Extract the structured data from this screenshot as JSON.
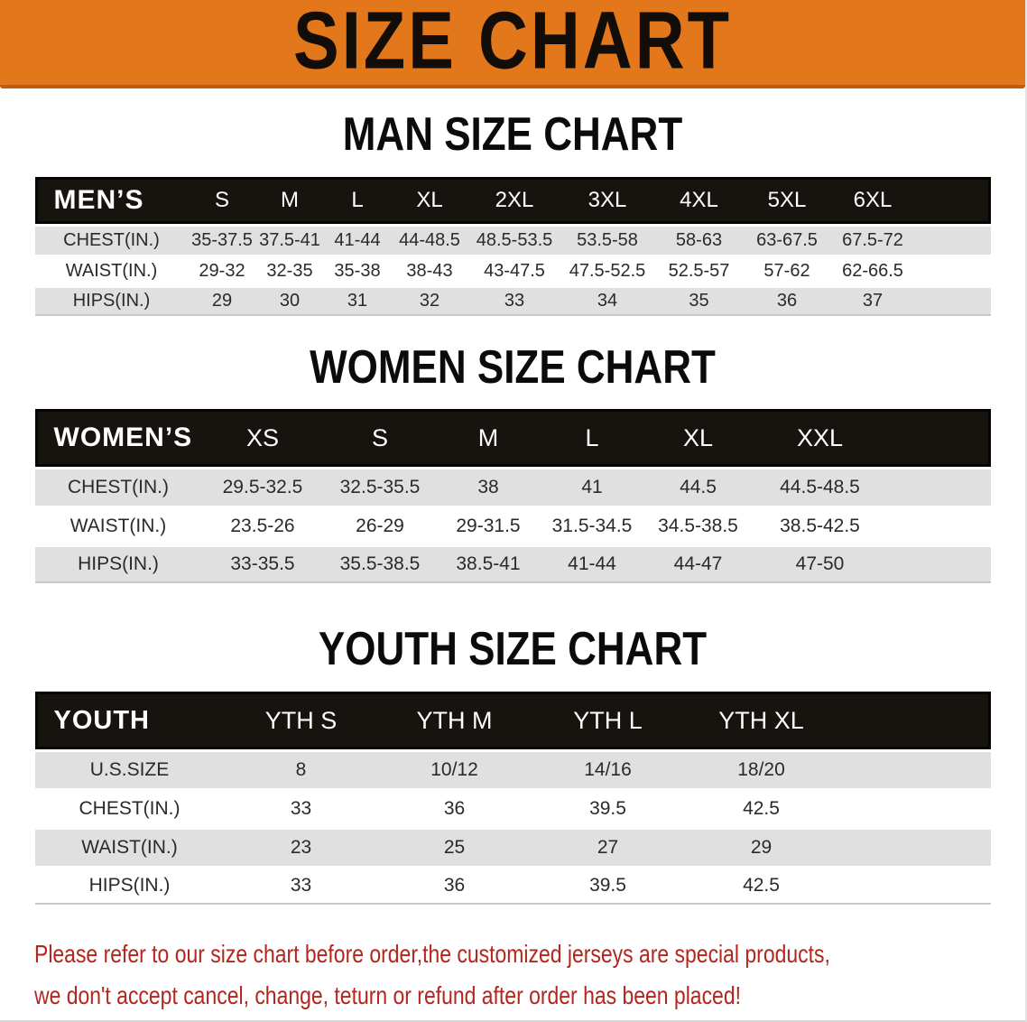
{
  "banner": {
    "title": "SIZE CHART"
  },
  "sections": [
    {
      "heading": "MAN SIZE CHART",
      "group_label": "MEN’S",
      "sizes": [
        "S",
        "M",
        "L",
        "XL",
        "2XL",
        "3XL",
        "4XL",
        "5XL",
        "6XL"
      ],
      "rows": [
        {
          "label": "CHEST(IN.)",
          "values": [
            "35-37.5",
            "37.5-41",
            "41-44",
            "44-48.5",
            "48.5-53.5",
            "53.5-58",
            "58-63",
            "63-67.5",
            "67.5-72"
          ]
        },
        {
          "label": "WAIST(IN.)",
          "values": [
            "29-32",
            "32-35",
            "35-38",
            "38-43",
            "43-47.5",
            "47.5-52.5",
            "52.5-57",
            "57-62",
            "62-66.5"
          ]
        },
        {
          "label": "HIPS(IN.)",
          "values": [
            "29",
            "30",
            "31",
            "32",
            "33",
            "34",
            "35",
            "36",
            "37"
          ]
        }
      ]
    },
    {
      "heading": "WOMEN SIZE CHART",
      "group_label": "WOMEN’S",
      "sizes": [
        "XS",
        "S",
        "M",
        "L",
        "XL",
        "XXL"
      ],
      "rows": [
        {
          "label": "CHEST(IN.)",
          "values": [
            "29.5-32.5",
            "32.5-35.5",
            "38",
            "41",
            "44.5",
            "44.5-48.5"
          ]
        },
        {
          "label": "WAIST(IN.)",
          "values": [
            "23.5-26",
            "26-29",
            "29-31.5",
            "31.5-34.5",
            "34.5-38.5",
            "38.5-42.5"
          ]
        },
        {
          "label": "HIPS(IN.)",
          "values": [
            "33-35.5",
            "35.5-38.5",
            "38.5-41",
            "41-44",
            "44-47",
            "47-50"
          ]
        }
      ]
    },
    {
      "heading": "YOUTH SIZE CHART",
      "group_label": "YOUTH",
      "sizes": [
        "YTH S",
        "YTH M",
        "YTH L",
        "YTH XL"
      ],
      "rows": [
        {
          "label": "U.S.SIZE",
          "values": [
            "8",
            "10/12",
            "14/16",
            "18/20"
          ]
        },
        {
          "label": "CHEST(IN.)",
          "values": [
            "33",
            "36",
            "39.5",
            "42.5"
          ]
        },
        {
          "label": "WAIST(IN.)",
          "values": [
            "23",
            "25",
            "27",
            "29"
          ]
        },
        {
          "label": "HIPS(IN.)",
          "values": [
            "33",
            "36",
            "39.5",
            "42.5"
          ]
        }
      ]
    }
  ],
  "disclaimer": {
    "lines": [
      "Please refer to our size chart before order,the customized jerseys are special products,",
      "we don't accept cancel, change, teturn or refund after order has been placed!"
    ]
  },
  "colors": {
    "banner_bg": "#E2771C",
    "banner_edge": "#C05C0E",
    "header_bg": "#17130F",
    "row_alt_bg": "#E0E0E0",
    "heading_text": "#0D0B09",
    "disclaimer_text": "#B3261E"
  }
}
